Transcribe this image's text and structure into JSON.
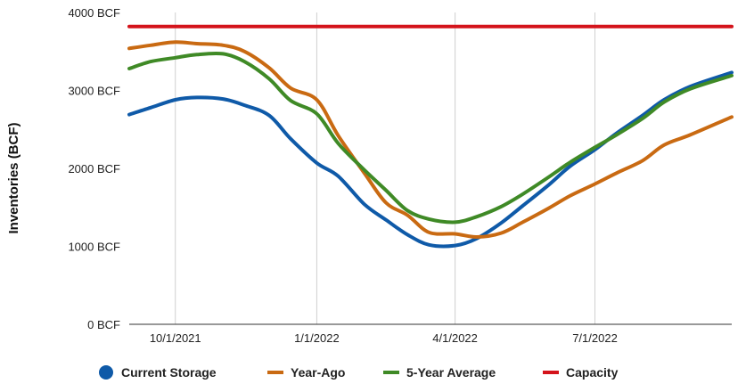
{
  "chart_data": {
    "type": "line",
    "title": "",
    "xlabel": "",
    "ylabel": "Inventories (BCF)",
    "ylim": [
      0,
      4000
    ],
    "xlim": [
      "2021-09-01",
      "2022-09-28"
    ],
    "grid": "vertical",
    "legend_position": "bottom",
    "y_ticks": [
      {
        "value": 0,
        "label": "0 BCF"
      },
      {
        "value": 1000,
        "label": "1000 BCF"
      },
      {
        "value": 2000,
        "label": "2000 BCF"
      },
      {
        "value": 3000,
        "label": "3000 BCF"
      },
      {
        "value": 4000,
        "label": "4000 BCF"
      }
    ],
    "x_ticks": [
      {
        "value": "2021-10-01",
        "label": "10/1/2021"
      },
      {
        "value": "2022-01-01",
        "label": "1/1/2022"
      },
      {
        "value": "2022-04-01",
        "label": "4/1/2022"
      },
      {
        "value": "2022-07-01",
        "label": "7/1/2022"
      }
    ],
    "series": [
      {
        "name": "Current Storage",
        "color": "#0f5aa8",
        "points": [
          [
            "2021-09-01",
            2690
          ],
          [
            "2021-09-15",
            2780
          ],
          [
            "2021-10-01",
            2880
          ],
          [
            "2021-10-15",
            2910
          ],
          [
            "2021-11-01",
            2890
          ],
          [
            "2021-11-15",
            2810
          ],
          [
            "2021-12-01",
            2680
          ],
          [
            "2021-12-15",
            2380
          ],
          [
            "2022-01-01",
            2070
          ],
          [
            "2022-01-15",
            1900
          ],
          [
            "2022-02-01",
            1540
          ],
          [
            "2022-02-15",
            1340
          ],
          [
            "2022-03-01",
            1150
          ],
          [
            "2022-03-15",
            1020
          ],
          [
            "2022-04-01",
            1010
          ],
          [
            "2022-04-15",
            1100
          ],
          [
            "2022-05-01",
            1300
          ],
          [
            "2022-05-15",
            1520
          ],
          [
            "2022-06-01",
            1790
          ],
          [
            "2022-06-15",
            2030
          ],
          [
            "2022-07-01",
            2240
          ],
          [
            "2022-07-15",
            2450
          ],
          [
            "2022-08-01",
            2680
          ],
          [
            "2022-08-15",
            2880
          ],
          [
            "2022-09-01",
            3050
          ],
          [
            "2022-09-28",
            3230
          ]
        ]
      },
      {
        "name": "Year-Ago",
        "color": "#c96a12",
        "points": [
          [
            "2021-09-01",
            3540
          ],
          [
            "2021-09-15",
            3580
          ],
          [
            "2021-10-01",
            3620
          ],
          [
            "2021-10-15",
            3600
          ],
          [
            "2021-11-01",
            3580
          ],
          [
            "2021-11-15",
            3500
          ],
          [
            "2021-12-01",
            3290
          ],
          [
            "2021-12-15",
            3030
          ],
          [
            "2022-01-01",
            2880
          ],
          [
            "2022-01-15",
            2420
          ],
          [
            "2022-02-01",
            1940
          ],
          [
            "2022-02-15",
            1560
          ],
          [
            "2022-03-01",
            1400
          ],
          [
            "2022-03-15",
            1180
          ],
          [
            "2022-04-01",
            1160
          ],
          [
            "2022-04-15",
            1120
          ],
          [
            "2022-05-01",
            1170
          ],
          [
            "2022-05-15",
            1310
          ],
          [
            "2022-06-01",
            1490
          ],
          [
            "2022-06-15",
            1650
          ],
          [
            "2022-07-01",
            1800
          ],
          [
            "2022-07-15",
            1940
          ],
          [
            "2022-08-01",
            2100
          ],
          [
            "2022-08-15",
            2300
          ],
          [
            "2022-09-01",
            2430
          ],
          [
            "2022-09-28",
            2660
          ]
        ]
      },
      {
        "name": "5-Year Average",
        "color": "#3f8a26",
        "points": [
          [
            "2021-09-01",
            3280
          ],
          [
            "2021-09-15",
            3370
          ],
          [
            "2021-10-01",
            3420
          ],
          [
            "2021-10-15",
            3460
          ],
          [
            "2021-11-01",
            3470
          ],
          [
            "2021-11-15",
            3370
          ],
          [
            "2021-12-01",
            3150
          ],
          [
            "2021-12-15",
            2870
          ],
          [
            "2022-01-01",
            2700
          ],
          [
            "2022-01-15",
            2320
          ],
          [
            "2022-02-01",
            1980
          ],
          [
            "2022-02-15",
            1720
          ],
          [
            "2022-03-01",
            1460
          ],
          [
            "2022-03-15",
            1350
          ],
          [
            "2022-04-01",
            1310
          ],
          [
            "2022-04-15",
            1380
          ],
          [
            "2022-05-01",
            1510
          ],
          [
            "2022-05-15",
            1670
          ],
          [
            "2022-06-01",
            1890
          ],
          [
            "2022-06-15",
            2080
          ],
          [
            "2022-07-01",
            2270
          ],
          [
            "2022-07-15",
            2430
          ],
          [
            "2022-08-01",
            2640
          ],
          [
            "2022-08-15",
            2850
          ],
          [
            "2022-09-01",
            3020
          ],
          [
            "2022-09-28",
            3190
          ]
        ]
      },
      {
        "name": "Capacity",
        "color": "#d4131b",
        "points": [
          [
            "2021-09-01",
            3820
          ],
          [
            "2022-09-28",
            3820
          ]
        ]
      }
    ]
  }
}
